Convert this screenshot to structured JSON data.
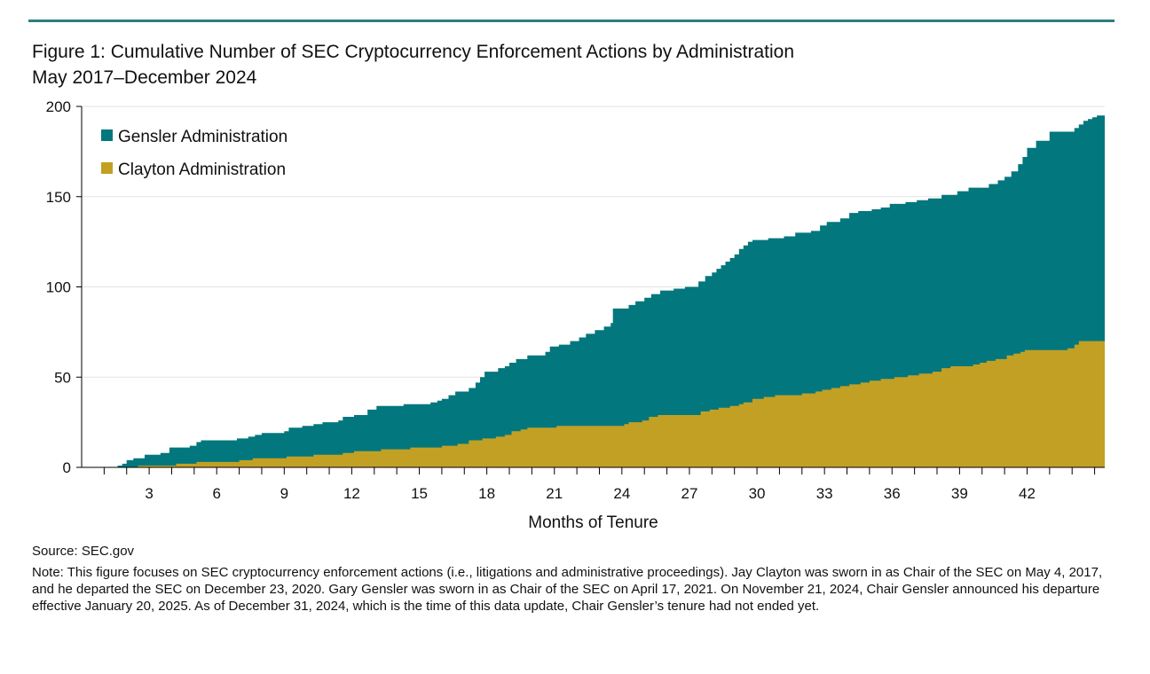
{
  "colors": {
    "gensler": "#02777e",
    "clayton": "#c2a024",
    "rule": "#2e7d7f",
    "grid": "#e3e3e3",
    "axis": "#000000"
  },
  "title": "Figure 1: Cumulative Number of SEC Cryptocurrency Enforcement Actions by Administration",
  "subtitle": "May 2017–December 2024",
  "source": "Source: SEC.gov",
  "note": "Note: This figure focuses on SEC cryptocurrency enforcement actions (i.e., litigations and administrative proceedings). Jay Clayton was sworn in as Chair of the SEC on May 4, 2017, and he departed the SEC on December 23, 2020. Gary Gensler was sworn in as Chair of the SEC on April 17, 2021. On November 21, 2024, Chair Gensler announced his departure effective January 20, 2025. As of December 31, 2024, which is the time of this data update, Chair Gensler’s tenure had not ended yet.",
  "chart_data": {
    "type": "area",
    "title": "Cumulative Number of SEC Cryptocurrency Enforcement Actions by Administration",
    "xlabel": "Months of Tenure",
    "ylabel": "",
    "xlim": [
      0,
      44.5
    ],
    "ylim": [
      0,
      200
    ],
    "x_ticks": [
      3,
      6,
      9,
      12,
      15,
      18,
      21,
      24,
      27,
      30,
      33,
      36,
      39,
      42
    ],
    "y_ticks": [
      0,
      50,
      100,
      150,
      200
    ],
    "grid": true,
    "legend_position": "top-left",
    "step": true,
    "series": [
      {
        "name": "Gensler Administration",
        "key": "gensler",
        "points": [
          [
            0,
            0
          ],
          [
            1.4,
            0
          ],
          [
            1.6,
            1
          ],
          [
            1.8,
            2
          ],
          [
            2,
            4
          ],
          [
            2.3,
            5
          ],
          [
            2.8,
            7
          ],
          [
            3.5,
            8
          ],
          [
            3.9,
            11
          ],
          [
            4.8,
            12
          ],
          [
            5.1,
            14
          ],
          [
            5.3,
            15
          ],
          [
            6.9,
            16
          ],
          [
            7.4,
            17
          ],
          [
            7.7,
            18
          ],
          [
            8,
            19
          ],
          [
            9,
            20
          ],
          [
            9.2,
            22
          ],
          [
            9.8,
            23
          ],
          [
            10.3,
            24
          ],
          [
            10.7,
            25
          ],
          [
            11.4,
            26
          ],
          [
            11.6,
            28
          ],
          [
            12.1,
            29
          ],
          [
            12.7,
            32
          ],
          [
            13.1,
            34
          ],
          [
            14.3,
            35
          ],
          [
            15.5,
            36
          ],
          [
            15.8,
            37
          ],
          [
            16,
            38
          ],
          [
            16.3,
            40
          ],
          [
            16.6,
            42
          ],
          [
            17.2,
            44
          ],
          [
            17.5,
            47
          ],
          [
            17.7,
            50
          ],
          [
            17.9,
            53
          ],
          [
            18.5,
            55
          ],
          [
            18.8,
            56
          ],
          [
            19,
            58
          ],
          [
            19.3,
            60
          ],
          [
            19.8,
            62
          ],
          [
            20.6,
            64
          ],
          [
            20.8,
            67
          ],
          [
            21.2,
            68
          ],
          [
            21.7,
            70
          ],
          [
            22.1,
            72
          ],
          [
            22.4,
            74
          ],
          [
            22.8,
            76
          ],
          [
            23.2,
            78
          ],
          [
            23.5,
            80
          ],
          [
            23.6,
            88
          ],
          [
            24.3,
            90
          ],
          [
            24.6,
            92
          ],
          [
            25,
            94
          ],
          [
            25.3,
            96
          ],
          [
            25.7,
            98
          ],
          [
            26.3,
            99
          ],
          [
            26.8,
            100
          ],
          [
            27.4,
            103
          ],
          [
            27.7,
            106
          ],
          [
            28,
            108
          ],
          [
            28.2,
            110
          ],
          [
            28.4,
            112
          ],
          [
            28.6,
            114
          ],
          [
            28.8,
            116
          ],
          [
            29,
            118
          ],
          [
            29.2,
            121
          ],
          [
            29.4,
            123
          ],
          [
            29.6,
            125
          ],
          [
            29.8,
            126
          ],
          [
            30.5,
            127
          ],
          [
            31.2,
            128
          ],
          [
            31.7,
            130
          ],
          [
            32.4,
            131
          ],
          [
            32.8,
            134
          ],
          [
            33.1,
            136
          ],
          [
            33.7,
            138
          ],
          [
            34.1,
            141
          ],
          [
            34.5,
            142
          ],
          [
            35.1,
            143
          ],
          [
            35.5,
            144
          ],
          [
            35.9,
            146
          ],
          [
            36.6,
            147
          ],
          [
            37.1,
            148
          ],
          [
            37.6,
            149
          ],
          [
            38.2,
            151
          ],
          [
            38.9,
            153
          ],
          [
            39.4,
            155
          ],
          [
            40.3,
            157
          ],
          [
            40.7,
            159
          ],
          [
            41,
            161
          ],
          [
            41.3,
            164
          ],
          [
            41.6,
            168
          ],
          [
            41.8,
            172
          ],
          [
            42,
            177
          ],
          [
            42.4,
            181
          ],
          [
            43,
            186
          ],
          [
            44.1,
            188
          ],
          [
            44.3,
            190
          ],
          [
            44.5,
            192
          ],
          [
            44.7,
            193
          ],
          [
            44.9,
            194
          ],
          [
            45.1,
            195
          ],
          [
            45.45,
            195
          ]
        ]
      },
      {
        "name": "Clayton Administration",
        "key": "clayton",
        "points": [
          [
            0,
            0
          ],
          [
            2.1,
            0
          ],
          [
            2.5,
            1
          ],
          [
            4.2,
            2
          ],
          [
            5.1,
            3
          ],
          [
            7,
            4
          ],
          [
            7.6,
            5
          ],
          [
            9.1,
            6
          ],
          [
            10.3,
            7
          ],
          [
            11.6,
            8
          ],
          [
            12.1,
            9
          ],
          [
            13.3,
            10
          ],
          [
            14.6,
            11
          ],
          [
            16,
            12
          ],
          [
            16.7,
            13
          ],
          [
            17.2,
            15
          ],
          [
            17.8,
            16
          ],
          [
            18.4,
            17
          ],
          [
            18.8,
            18
          ],
          [
            19.1,
            20
          ],
          [
            19.5,
            21
          ],
          [
            19.8,
            22
          ],
          [
            21.1,
            23
          ],
          [
            24.1,
            24
          ],
          [
            24.3,
            25
          ],
          [
            24.9,
            26
          ],
          [
            25.2,
            28
          ],
          [
            25.6,
            29
          ],
          [
            27.5,
            31
          ],
          [
            27.9,
            32
          ],
          [
            28.3,
            33
          ],
          [
            28.8,
            34
          ],
          [
            29.2,
            35
          ],
          [
            29.4,
            36
          ],
          [
            29.8,
            38
          ],
          [
            30.3,
            39
          ],
          [
            30.8,
            40
          ],
          [
            32,
            41
          ],
          [
            32.6,
            42
          ],
          [
            32.9,
            43
          ],
          [
            33.3,
            44
          ],
          [
            33.7,
            45
          ],
          [
            34.1,
            46
          ],
          [
            34.6,
            47
          ],
          [
            35,
            48
          ],
          [
            35.5,
            49
          ],
          [
            36.1,
            50
          ],
          [
            36.7,
            51
          ],
          [
            37.2,
            52
          ],
          [
            37.8,
            53
          ],
          [
            38.2,
            55
          ],
          [
            38.6,
            56
          ],
          [
            39.6,
            57
          ],
          [
            39.9,
            58
          ],
          [
            40.2,
            59
          ],
          [
            40.6,
            60
          ],
          [
            41.1,
            62
          ],
          [
            41.4,
            63
          ],
          [
            41.7,
            64
          ],
          [
            41.9,
            65
          ],
          [
            43.8,
            66
          ],
          [
            44.1,
            68
          ],
          [
            44.3,
            70
          ],
          [
            45.45,
            70
          ]
        ]
      }
    ]
  }
}
